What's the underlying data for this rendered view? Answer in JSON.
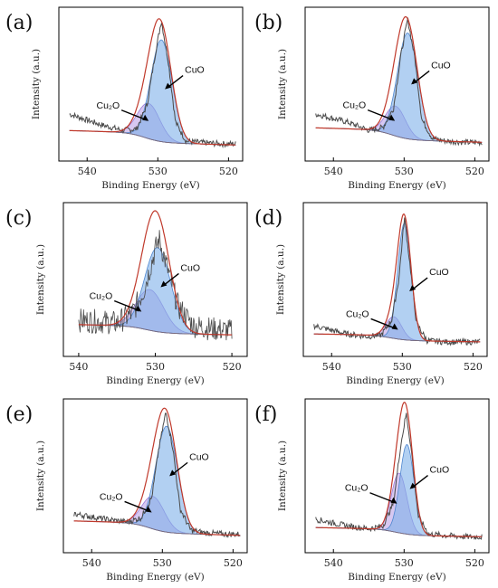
{
  "chart_data": [
    {
      "type": "line",
      "panel_label": "(a)",
      "xlabel": "Binding Energy (eV)",
      "ylabel": "Intensity (a.u.)",
      "xlim": [
        544,
        518
      ],
      "x_ticks": [
        540,
        530,
        520
      ],
      "x_points": [
        542.5,
        538,
        535,
        533,
        531.5,
        530.5,
        529.5,
        528.5,
        527.5,
        526,
        524,
        521,
        519
      ],
      "series": [
        {
          "values": [
            0.28,
            0.2,
            0.16,
            0.17,
            0.35,
            0.68,
            0.97,
            0.66,
            0.22,
            0.08,
            0.07,
            0.06,
            0.06
          ]
        }
      ],
      "peak_CuO": {
        "center": 529.5,
        "height": 0.75,
        "width": 1.5
      },
      "peak_Cu2O": {
        "center": 531.3,
        "height": 0.26,
        "width": 1.6
      },
      "background": {
        "high": 0.16,
        "low": 0.05
      },
      "annotations": [
        {
          "text": "CuO",
          "x": 529.0
        },
        {
          "text": "Cu₂O",
          "x": 531.3
        }
      ]
    },
    {
      "type": "line",
      "panel_label": "(b)",
      "xlabel": "Binding Energy (eV)",
      "ylabel": "Intensity (a.u.)",
      "xlim": [
        544,
        518
      ],
      "x_ticks": [
        540,
        530,
        520
      ],
      "x_points": [
        542.5,
        538,
        535,
        533,
        531.5,
        530.5,
        529.5,
        528.5,
        527.5,
        526,
        524,
        521,
        519
      ],
      "series": [
        {
          "values": [
            0.28,
            0.22,
            0.16,
            0.18,
            0.32,
            0.7,
            0.98,
            0.7,
            0.24,
            0.1,
            0.08,
            0.07,
            0.07
          ]
        }
      ],
      "peak_CuO": {
        "center": 529.5,
        "height": 0.78,
        "width": 1.45
      },
      "peak_Cu2O": {
        "center": 531.2,
        "height": 0.22,
        "width": 1.4
      },
      "background": {
        "high": 0.18,
        "low": 0.07
      },
      "annotations": [
        {
          "text": "CuO",
          "x": 529.0
        },
        {
          "text": "Cu₂O",
          "x": 531.3
        }
      ]
    },
    {
      "type": "line",
      "panel_label": "(c)",
      "xlabel": "Binding Energy (eV)",
      "ylabel": "Intensity (a.u.)",
      "xlim": [
        542,
        518
      ],
      "x_ticks": [
        540,
        530,
        520
      ],
      "x_points": [
        540,
        537,
        535,
        533,
        531.5,
        530,
        529.5,
        528.5,
        527,
        525,
        523,
        520
      ],
      "series": [
        {
          "values": [
            0.2,
            0.19,
            0.18,
            0.25,
            0.42,
            0.72,
            0.8,
            0.6,
            0.3,
            0.16,
            0.14,
            0.12
          ]
        }
      ],
      "peak_CuO": {
        "center": 529.7,
        "height": 0.62,
        "width": 1.7
      },
      "peak_Cu2O": {
        "center": 530.7,
        "height": 0.3,
        "width": 1.8
      },
      "background": {
        "high": 0.17,
        "low": 0.09
      },
      "annotations": [
        {
          "text": "CuO",
          "x": 529.3
        },
        {
          "text": "Cu₂O",
          "x": 531.8
        }
      ]
    },
    {
      "type": "line",
      "panel_label": "(d)",
      "xlabel": "Binding Energy (eV)",
      "ylabel": "Intensity (a.u.)",
      "xlim": [
        544,
        518
      ],
      "x_ticks": [
        540,
        530,
        520
      ],
      "x_points": [
        542.5,
        538,
        535,
        533,
        531.5,
        530.5,
        529.7,
        529,
        528,
        526.5,
        524,
        521,
        519
      ],
      "series": [
        {
          "values": [
            0.16,
            0.1,
            0.08,
            0.09,
            0.2,
            0.5,
            0.96,
            0.65,
            0.18,
            0.05,
            0.04,
            0.04,
            0.04
          ]
        }
      ],
      "peak_CuO": {
        "center": 529.7,
        "height": 0.86,
        "width": 0.95
      },
      "peak_Cu2O": {
        "center": 531.2,
        "height": 0.16,
        "width": 1.1
      },
      "background": {
        "high": 0.1,
        "low": 0.04
      },
      "annotations": [
        {
          "text": "CuO",
          "x": 529.0
        },
        {
          "text": "Cu₂O",
          "x": 530.6
        }
      ]
    },
    {
      "type": "line",
      "panel_label": "(e)",
      "xlabel": "Binding Energy (eV)",
      "ylabel": "Intensity (a.u.)",
      "xlim": [
        544,
        518
      ],
      "x_ticks": [
        540,
        530,
        520
      ],
      "x_points": [
        542.5,
        538,
        535,
        533,
        531.5,
        530.5,
        529.5,
        528.5,
        527.5,
        526,
        524,
        521,
        519
      ],
      "series": [
        {
          "values": [
            0.22,
            0.18,
            0.16,
            0.19,
            0.34,
            0.7,
            0.97,
            0.7,
            0.26,
            0.1,
            0.08,
            0.07,
            0.07
          ]
        }
      ],
      "peak_CuO": {
        "center": 529.4,
        "height": 0.78,
        "width": 1.55
      },
      "peak_Cu2O": {
        "center": 531.3,
        "height": 0.24,
        "width": 1.6
      },
      "background": {
        "high": 0.17,
        "low": 0.06
      },
      "annotations": [
        {
          "text": "CuO",
          "x": 529.0
        },
        {
          "text": "Cu₂O",
          "x": 531.5
        }
      ]
    },
    {
      "type": "line",
      "panel_label": "(f)",
      "xlabel": "Binding Energy (eV)",
      "ylabel": "Intensity (a.u.)",
      "xlim": [
        544,
        518
      ],
      "x_ticks": [
        540,
        530,
        520
      ],
      "x_points": [
        542.5,
        538,
        535,
        533,
        531.5,
        530.5,
        529.7,
        529,
        528,
        526.5,
        524,
        521,
        519
      ],
      "series": [
        {
          "values": [
            0.18,
            0.13,
            0.11,
            0.13,
            0.3,
            0.72,
            0.96,
            0.7,
            0.2,
            0.07,
            0.06,
            0.05,
            0.05
          ]
        }
      ],
      "peak_CuO": {
        "center": 529.6,
        "height": 0.66,
        "width": 1.0
      },
      "peak_Cu2O": {
        "center": 530.7,
        "height": 0.44,
        "width": 1.1
      },
      "background": {
        "high": 0.12,
        "low": 0.05
      },
      "annotations": [
        {
          "text": "CuO",
          "x": 529.2
        },
        {
          "text": "Cu₂O",
          "x": 531.0
        }
      ]
    }
  ],
  "colors": {
    "raw": "#4a4a4a",
    "envelope": "#c0392b",
    "background": "#7a6a7a",
    "cuo_fill": "#7fb0ea",
    "cu2o_fill": "#b79ae6",
    "frame": "#000000"
  }
}
